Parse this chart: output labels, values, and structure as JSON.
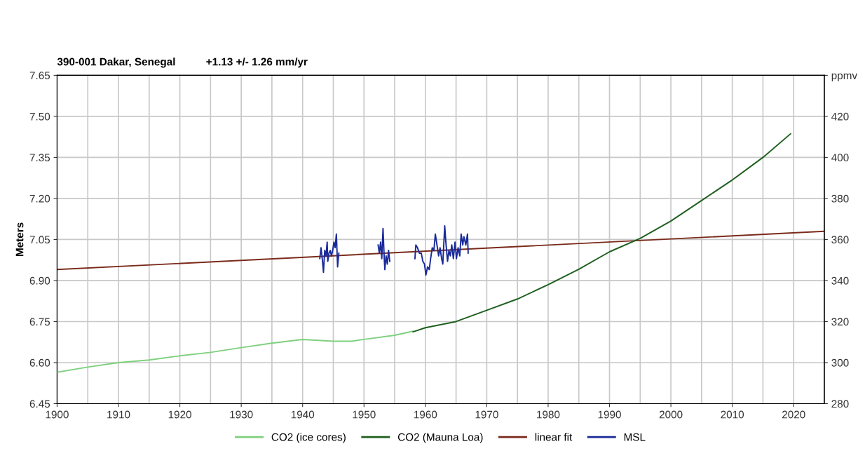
{
  "chart_data": {
    "type": "line",
    "title": "390-001 Dakar, Senegal",
    "subtitle": "+1.13 +/- 1.26 mm/yr",
    "ylabel": "Meters",
    "xlim": [
      1900,
      2025
    ],
    "xticks": [
      1900,
      1910,
      1920,
      1930,
      1940,
      1950,
      1960,
      1970,
      1980,
      1990,
      2000,
      2010,
      2020
    ],
    "ylim": [
      6.45,
      7.65
    ],
    "yticks": [
      6.45,
      {
        "value": 6.6,
        "label": "6.60"
      },
      6.75,
      {
        "value": 6.9,
        "label": "6.90"
      },
      7.05,
      {
        "value": 7.2,
        "label": "7.20"
      },
      7.35,
      {
        "value": 7.5,
        "label": "7.50"
      },
      7.65
    ],
    "y2lim": [
      280,
      440
    ],
    "y2ticks": [
      280,
      300,
      320,
      340,
      360,
      380,
      400,
      420,
      {
        "value": 440,
        "label": "ppmv"
      }
    ],
    "grid": true,
    "legend": "bottom",
    "marker": "none",
    "line_style": "solid",
    "series": [
      {
        "name": "CO2 (ice cores)",
        "color": "#7fd07f",
        "axis": "y2",
        "x": [
          1900,
          1905,
          1910,
          1915,
          1920,
          1925,
          1930,
          1935,
          1940,
          1945,
          1948,
          1950,
          1955,
          1958
        ],
        "values": [
          295.3,
          297.8,
          300,
          301.3,
          303.3,
          305,
          307.3,
          309.5,
          311.3,
          310.4,
          310.4,
          311.3,
          313.3,
          315.3
        ]
      },
      {
        "name": "CO2 (Mauna Loa)",
        "color": "#1f5f1f",
        "axis": "y2",
        "x": [
          1958,
          1960,
          1965,
          1970,
          1975,
          1980,
          1985,
          1990,
          1995,
          2000,
          2005,
          2010,
          2015,
          2019.5
        ],
        "values": [
          315,
          317,
          320,
          325.5,
          331,
          338,
          345.5,
          354,
          360.5,
          369,
          379,
          389,
          400,
          411.5
        ]
      },
      {
        "name": "linear fit",
        "color": "#7a2a1a",
        "x": [
          1900,
          2025
        ],
        "values": [
          6.94,
          7.08
        ]
      },
      {
        "name": "MSL",
        "color": "#1a2a9a",
        "x": [
          1942.8,
          1943.0,
          1943.2,
          1943.4,
          1943.6,
          1943.8,
          1944.0,
          1944.1,
          1944.3,
          1944.5,
          1944.7,
          1944.9,
          1945.1,
          1945.3,
          1945.5,
          1945.7,
          1945.9,
          1949,
          1952.3,
          1952.5,
          1952.7,
          1952.9,
          1953.1,
          1953.3,
          1953.4,
          1953.6,
          1953.8,
          1954.0,
          1954.2,
          1956,
          1958.3,
          1958.45,
          1958.72,
          1959.02,
          1959.33,
          1959.59,
          1959.86,
          1960.09,
          1960.36,
          1960.63,
          1960.86,
          1961.12,
          1961.39,
          1961.62,
          1961.89,
          1962.16,
          1962.39,
          1962.65,
          1962.84,
          1963.15,
          1963.34,
          1963.61,
          1963.84,
          1964.07,
          1964.3,
          1964.56,
          1964.83,
          1965.06,
          1965.33,
          1965.6,
          1965.83,
          1966.09,
          1966.28,
          1966.59,
          1966.86,
          1966.97
        ],
        "values": [
          6.98,
          7.02,
          6.98,
          6.93,
          7.01,
          6.99,
          7.04,
          6.97,
          7.0,
          7.01,
          6.99,
          7.01,
          7.04,
          7.02,
          7.07,
          6.95,
          7.0,
          null,
          7.03,
          7.0,
          7.04,
          6.98,
          7.09,
          6.98,
          6.94,
          6.99,
          6.96,
          7.01,
          6.97,
          null,
          6.98,
          7.03,
          7.02,
          7.0,
          7.0,
          6.97,
          6.96,
          6.92,
          6.95,
          6.94,
          6.98,
          7.02,
          7.01,
          7.07,
          7.03,
          6.99,
          7.02,
          6.98,
          6.96,
          7.1,
          7.04,
          6.97,
          7.01,
          6.99,
          7.03,
          6.98,
          7.04,
          6.98,
          7.02,
          6.99,
          7.07,
          7.03,
          7.06,
          7.03,
          7.07,
          7.0
        ]
      }
    ]
  }
}
